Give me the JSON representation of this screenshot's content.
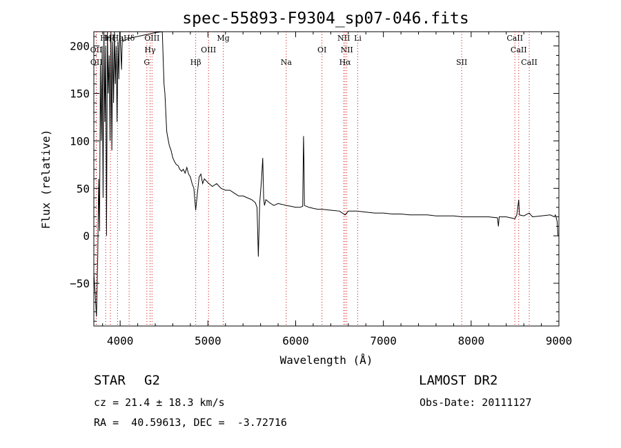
{
  "chart_data": {
    "type": "line",
    "title": "spec-55893-F9304_sp07-046.fits",
    "xlabel": "Wavelength (Å)",
    "ylabel": "Flux (relative)",
    "xlim": [
      3700,
      9000
    ],
    "ylim": [
      -95,
      215
    ],
    "xticks": [
      4000,
      5000,
      6000,
      7000,
      8000,
      9000
    ],
    "xtick_labels": [
      "4000",
      "5000",
      "6000",
      "7000",
      "8000",
      "9000"
    ],
    "yticks": [
      -50,
      0,
      50,
      100,
      150,
      200
    ],
    "ytick_labels": [
      "−50",
      "0",
      "50",
      "100",
      "150",
      "200"
    ],
    "grid": false,
    "line_color": "#000000",
    "marker_color": "#cc0000",
    "series": [
      {
        "x": [
          3700,
          3715,
          3730,
          3745,
          3755,
          3765,
          3775,
          3785,
          3795,
          3805,
          3815,
          3825,
          3835,
          3845,
          3855,
          3865,
          3875,
          3885,
          3895,
          3905,
          3915,
          3925,
          3935,
          3945,
          3955,
          3965,
          3975,
          3985,
          3995,
          4005,
          4015,
          4025,
          4035,
          4100,
          4200,
          4300,
          4400,
          4480,
          4500,
          4510,
          4520,
          4530,
          4540,
          4550,
          4560,
          4580,
          4600,
          4620,
          4640,
          4660,
          4680,
          4700,
          4720,
          4740,
          4760,
          4780,
          4800,
          4820,
          4840,
          4861,
          4880,
          4900,
          4920,
          4940,
          4960,
          4980,
          5000,
          5050,
          5100,
          5150,
          5200,
          5250,
          5300,
          5350,
          5400,
          5450,
          5500,
          5540,
          5560,
          5575,
          5590,
          5610,
          5625,
          5635,
          5645,
          5660,
          5700,
          5750,
          5800,
          5850,
          5893,
          5950,
          6000,
          6050,
          6080,
          6090,
          6095,
          6100,
          6150,
          6200,
          6250,
          6300,
          6400,
          6500,
          6563,
          6600,
          6700,
          6800,
          6900,
          7000,
          7100,
          7200,
          7300,
          7400,
          7500,
          7600,
          7700,
          7800,
          7900,
          8000,
          8100,
          8200,
          8300,
          8310,
          8320,
          8400,
          8498,
          8520,
          8542,
          8550,
          8600,
          8662,
          8700,
          8800,
          8900,
          8950,
          8960,
          8980,
          8990,
          9000
        ],
        "y": [
          -40,
          -60,
          -85,
          -20,
          60,
          5,
          180,
          100,
          200,
          40,
          215,
          120,
          200,
          0,
          215,
          150,
          190,
          100,
          215,
          90,
          205,
          140,
          215,
          160,
          200,
          120,
          205,
          165,
          215,
          200,
          175,
          210,
          205,
          208,
          210,
          212,
          214,
          215,
          160,
          150,
          130,
          110,
          105,
          100,
          95,
          90,
          82,
          78,
          75,
          74,
          70,
          68,
          70,
          66,
          72,
          65,
          62,
          55,
          50,
          27,
          45,
          62,
          65,
          55,
          60,
          58,
          56,
          52,
          55,
          50,
          48,
          48,
          45,
          42,
          42,
          40,
          38,
          35,
          30,
          -22,
          35,
          58,
          82,
          40,
          32,
          38,
          35,
          32,
          34,
          33,
          32,
          31,
          30,
          30,
          31,
          105,
          75,
          32,
          30,
          29,
          28,
          28,
          27,
          26,
          22,
          26,
          26,
          25,
          24,
          24,
          23,
          23,
          22,
          22,
          22,
          21,
          21,
          21,
          20,
          20,
          20,
          20,
          19,
          10,
          20,
          20,
          18,
          22,
          38,
          22,
          21,
          24,
          20,
          21,
          22,
          20,
          22,
          15,
          0,
          0
        ]
      }
    ],
    "lines": {
      "names": [
        "OII",
        "OII",
        "Hη",
        "Hζ",
        "Hε",
        "Hδ",
        "OIII",
        "Hγ",
        "G",
        "Hβ",
        "OIII",
        "Mg",
        "Na",
        "OI",
        "NII",
        "NII",
        "Hα",
        "Li",
        "SII",
        "CaII",
        "CaII",
        "CaII"
      ],
      "wavelengths": [
        3727,
        3729,
        3835,
        3889,
        3970,
        4102,
        4363,
        4341,
        4304,
        4861,
        5007,
        5175,
        5893,
        6300,
        6548,
        6583,
        6563,
        6708,
        7892,
        8498,
        8542,
        8662
      ]
    }
  },
  "footer": {
    "object_type": "STAR",
    "subclass": "G2",
    "survey": "LAMOST DR2",
    "cz": "cz = 21.4 ± 18.3 km/s",
    "obs_date": "Obs-Date: 20111127",
    "coords": "RA =  40.59613, DEC =  -3.72716"
  }
}
